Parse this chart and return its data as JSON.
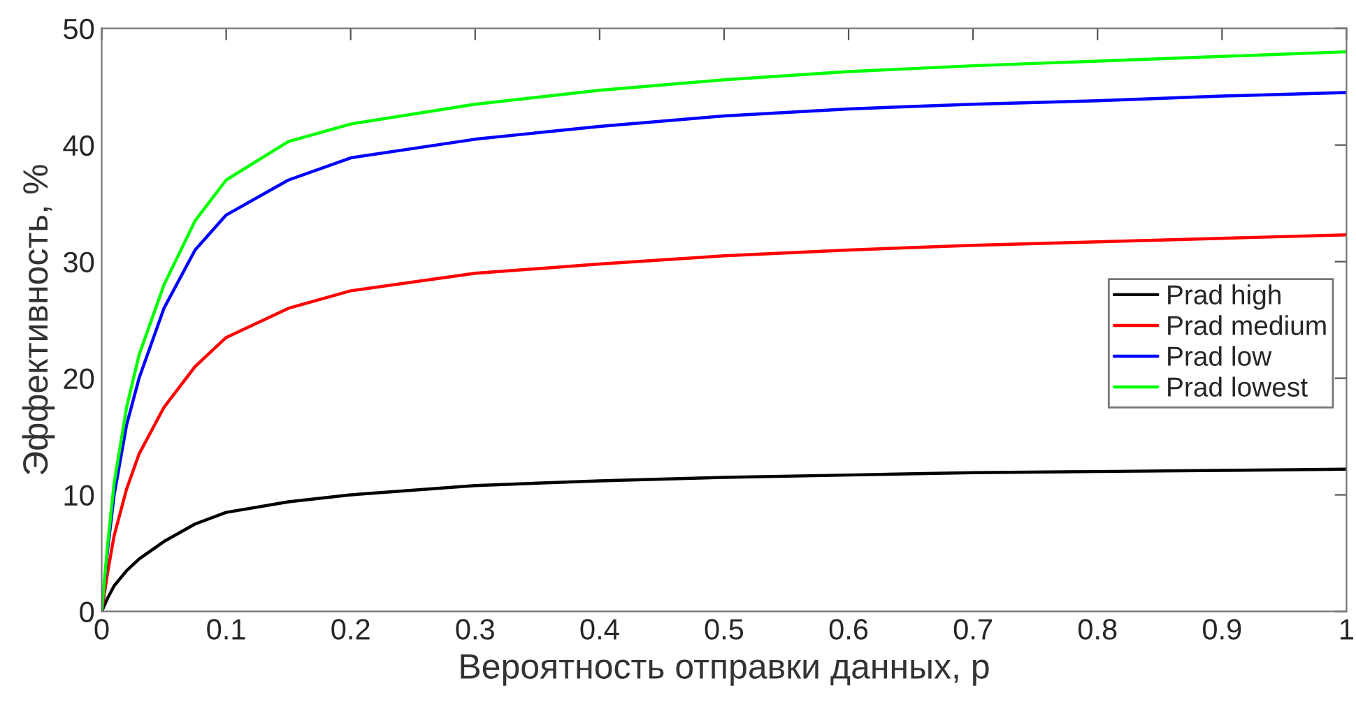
{
  "chart_data": {
    "type": "line",
    "xlabel": "Вероятность отправки данных, p",
    "ylabel": "Эффективность, %",
    "x": [
      0,
      0.005,
      0.01,
      0.02,
      0.03,
      0.05,
      0.075,
      0.1,
      0.15,
      0.2,
      0.3,
      0.4,
      0.5,
      0.6,
      0.7,
      0.8,
      0.9,
      1.0
    ],
    "series": [
      {
        "name": "Prad high",
        "color": "#000000",
        "values": [
          0,
          1.2,
          2.2,
          3.5,
          4.5,
          6,
          7.5,
          8.5,
          9.4,
          10,
          10.8,
          11.2,
          11.5,
          11.7,
          11.9,
          12,
          12.1,
          12.2
        ]
      },
      {
        "name": "Prad medium",
        "color": "#ff0000",
        "values": [
          0,
          3.5,
          6.5,
          10.5,
          13.5,
          17.5,
          21,
          23.5,
          26,
          27.5,
          29,
          29.8,
          30.5,
          31,
          31.4,
          31.7,
          32,
          32.3
        ]
      },
      {
        "name": "Prad low",
        "color": "#0000ff",
        "values": [
          0,
          5.5,
          10,
          16,
          20,
          26,
          31,
          34,
          37,
          38.9,
          40.5,
          41.6,
          42.5,
          43.1,
          43.5,
          43.8,
          44.2,
          44.5
        ]
      },
      {
        "name": "Prad lowest",
        "color": "#00ff00",
        "values": [
          0,
          6,
          11,
          17.5,
          22,
          28,
          33.5,
          37,
          40.3,
          41.8,
          43.5,
          44.7,
          45.6,
          46.3,
          46.8,
          47.2,
          47.6,
          48
        ]
      }
    ],
    "xlim": [
      0,
      1
    ],
    "xticks": [
      0,
      0.1,
      0.2,
      0.3,
      0.4,
      0.5,
      0.6,
      0.7,
      0.8,
      0.9,
      1
    ],
    "ylim": [
      0,
      50
    ],
    "yticks": [
      0,
      10,
      20,
      30,
      40,
      50
    ],
    "grid": false,
    "legend": "right"
  }
}
